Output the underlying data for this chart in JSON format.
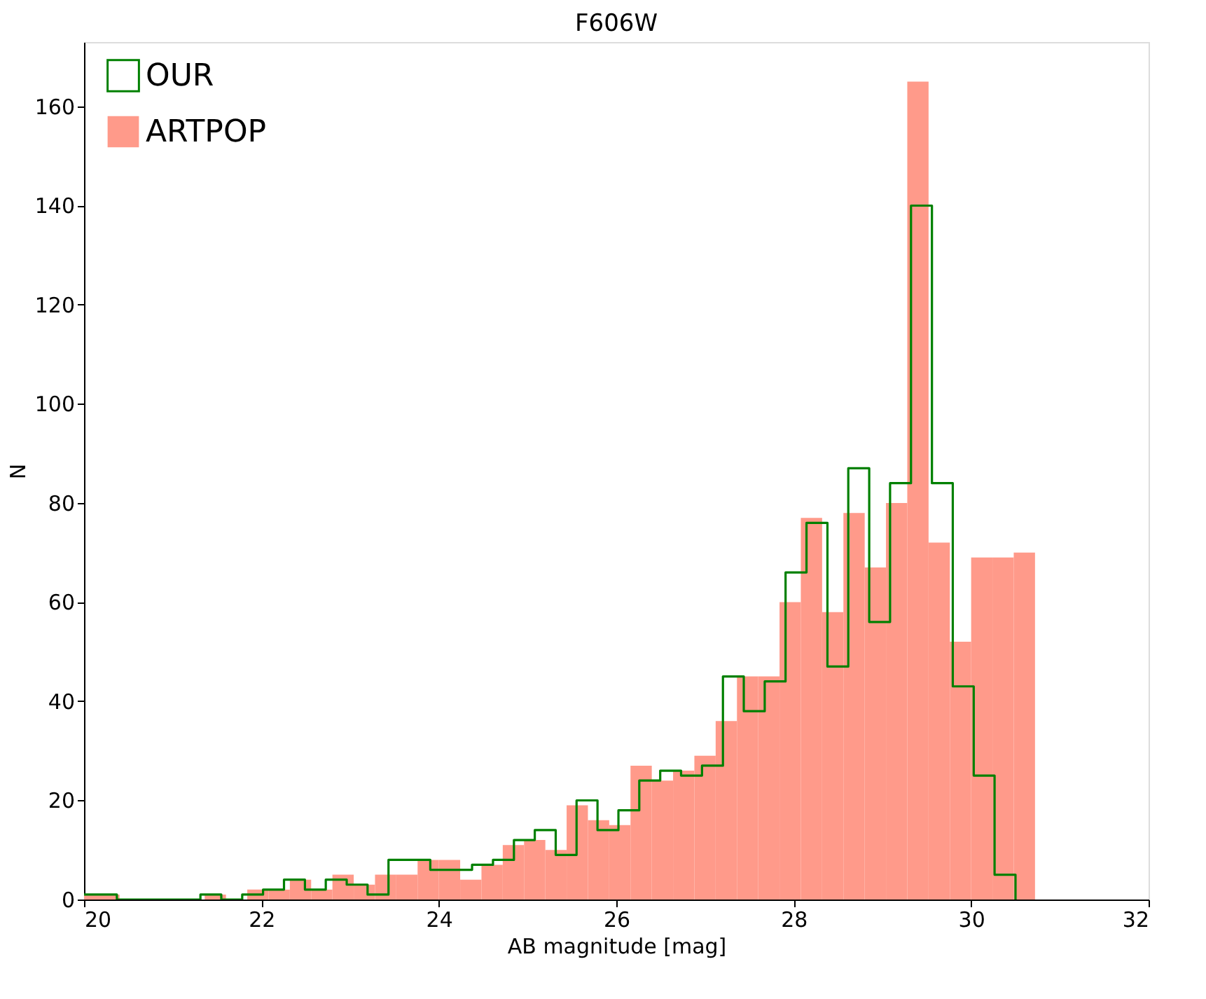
{
  "chart_data": {
    "type": "histogram",
    "title": "F606W",
    "xlabel": "AB magnitude [mag]",
    "ylabel": "N",
    "xlim": [
      20,
      32
    ],
    "xticks": [
      20,
      22,
      24,
      26,
      28,
      30,
      32
    ],
    "ylim": [
      0,
      173
    ],
    "yticks": [
      0,
      20,
      40,
      60,
      80,
      100,
      120,
      140,
      160
    ],
    "grid": false,
    "legend": "top left",
    "bins": [
      20.0,
      20.4,
      21.36,
      21.6,
      21.84,
      22.08,
      22.32,
      22.56,
      22.8,
      23.04,
      23.28,
      23.52,
      23.76,
      24.0,
      24.24,
      24.48,
      24.72,
      24.96,
      25.2,
      25.44,
      25.68,
      25.92,
      26.16,
      26.4,
      26.64,
      26.88,
      27.12,
      27.36,
      27.6,
      27.84,
      28.08,
      28.32,
      28.56,
      28.8,
      29.04,
      29.28,
      29.52,
      29.76,
      30.0,
      30.24,
      30.48,
      30.72
    ],
    "series": [
      {
        "name": "OUR",
        "type": "step",
        "color": "#008000",
        "x": [
          20.0,
          20.37,
          20.605,
          20.84,
          21.076,
          21.312,
          21.547,
          21.783,
          22.018,
          22.254,
          22.49,
          22.725,
          22.961,
          23.196,
          23.432,
          23.668,
          23.903,
          24.139,
          24.374,
          24.61,
          24.846,
          25.081,
          25.317,
          25.552,
          25.788,
          26.024,
          26.259,
          26.495,
          26.73,
          26.966,
          27.202,
          27.437,
          27.673,
          27.908,
          28.144,
          28.38,
          28.615,
          28.851,
          29.086,
          29.322,
          29.558,
          29.793,
          30.029,
          30.264,
          30.5
        ],
        "values": [
          1,
          0,
          0,
          0,
          0,
          1,
          0,
          1,
          2,
          4,
          2,
          4,
          3,
          1,
          8,
          8,
          6,
          6,
          7,
          8,
          12,
          14,
          9,
          20,
          14,
          18,
          24,
          26,
          25,
          27,
          45,
          38,
          44,
          66,
          76,
          47,
          87,
          56,
          84,
          140,
          84,
          43,
          25,
          5,
          0
        ]
      },
      {
        "name": "ARTPOP",
        "color": "#ff9a8a",
        "values": [
          1,
          0,
          1,
          0,
          2,
          2,
          4,
          2,
          5,
          3,
          5,
          5,
          8,
          8,
          4,
          7,
          11,
          12,
          10,
          19,
          16,
          15,
          27,
          24,
          26,
          29,
          36,
          45,
          45,
          60,
          77,
          58,
          78,
          67,
          80,
          165,
          72,
          52,
          69,
          69,
          70
        ]
      }
    ]
  }
}
